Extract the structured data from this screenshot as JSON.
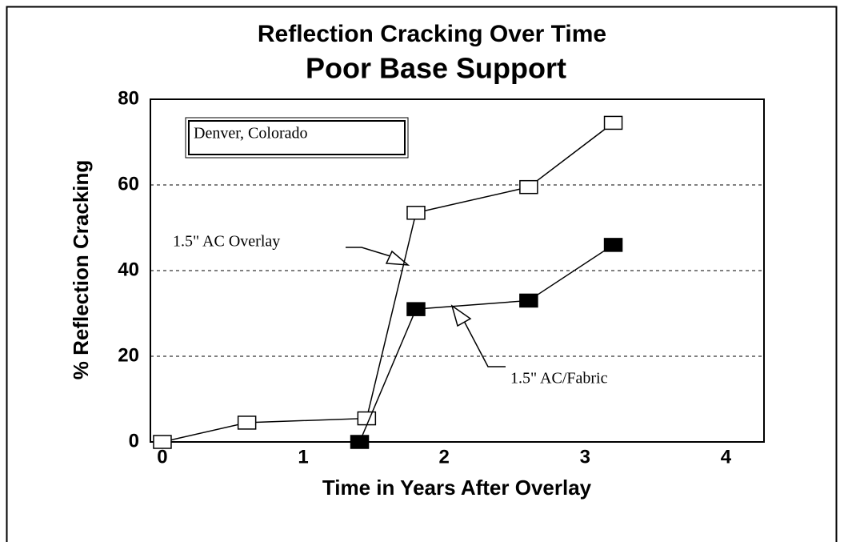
{
  "chart_data": {
    "type": "line",
    "title": "Reflection Cracking Over Time",
    "subtitle": "Poor Base Support",
    "xlabel": "Time in Years After Overlay",
    "ylabel": "% Reflection Cracking",
    "annotation": "Denver, Colorado",
    "xlim": [
      -0.085,
      4.27
    ],
    "ylim": [
      0,
      80
    ],
    "xticks": [
      0,
      1,
      2,
      3,
      4
    ],
    "yticks": [
      0,
      20,
      40,
      60,
      80
    ],
    "grid": true,
    "series": [
      {
        "name": "1.5\" AC Overlay",
        "color": "#000000",
        "marker_fill": "#ffffff",
        "x": [
          0,
          0.6,
          1.45,
          1.8,
          2.6,
          3.2
        ],
        "values": [
          0,
          4.5,
          5.5,
          53.5,
          59.5,
          74.5
        ]
      },
      {
        "name": "1.5\" AC/Fabric",
        "color": "#000000",
        "marker_fill": "#000000",
        "x": [
          1.4,
          1.8,
          2.6,
          3.2
        ],
        "values": [
          0,
          31,
          33,
          46
        ]
      }
    ]
  }
}
